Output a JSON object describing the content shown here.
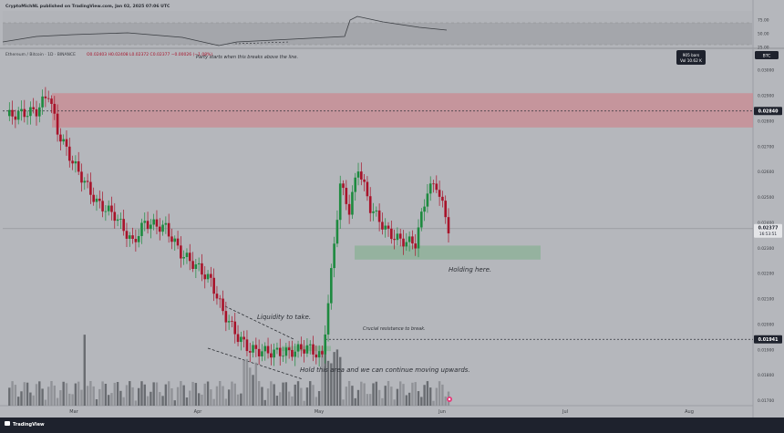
{
  "header": {
    "publisher": "CryptoMichNL published on TradingView.com, Jan 02, 2025 07:06 UTC",
    "symbol_line": "Ethereum / Bitcoin · 1D · BINANCE",
    "ohlc": "O0.02403 H0.02408 L0.02372 C0.02377 −0.00026 (−1.08%)"
  },
  "bars_badge": {
    "line1": "905 bars",
    "line2": "Vol 10.62 K"
  },
  "currency_badge": "BTC",
  "price_badges": {
    "resistance": {
      "value": 0.0284,
      "label": "0.02840"
    },
    "last": {
      "value": 0.02377,
      "label": "0.02377",
      "countdown": "16:53:51"
    },
    "support_line": {
      "value": 0.01941,
      "label": "0.01941"
    }
  },
  "annotations": {
    "party": "Party starts when this breaks above the line.",
    "liquidity": "Liquidity to take.",
    "crucial": "Crucial resistance to break.",
    "holding": "Holding here.",
    "hold_area": "Hold this area and we can continue moving upwards."
  },
  "footer": {
    "logo": "TradingView"
  },
  "colors": {
    "background": "#b5b7bc",
    "up": "#1d8a3f",
    "down": "#a8132a",
    "resistance_zone": "#c98c93",
    "support_zone": "#8fb19a",
    "text": "#2a2d33"
  },
  "chart_data": {
    "type": "candlestick",
    "price_axis": {
      "range": [
        0.0168,
        0.0304
      ],
      "ticks": [
        "0.03000",
        "0.02900",
        "0.02800",
        "0.02700",
        "0.02600",
        "0.02500",
        "0.02400",
        "0.02300",
        "0.02200",
        "0.02100",
        "0.02000",
        "0.01900",
        "0.01800",
        "0.01700"
      ]
    },
    "time_axis": {
      "ticks": [
        "Mar",
        "Apr",
        "May",
        "Jun",
        "Jul",
        "Aug"
      ]
    },
    "rsi": {
      "ticks": [
        "75.00",
        "50.00",
        "25.00"
      ],
      "upper": 70,
      "lower": 30
    },
    "zones": [
      {
        "name": "resistance",
        "low": 0.02775,
        "high": 0.0291
      },
      {
        "name": "support",
        "low": 0.02255,
        "high": 0.0231
      },
      {
        "name": "liquidity-box",
        "low": 0.01895,
        "high": 0.01915
      }
    ]
  }
}
